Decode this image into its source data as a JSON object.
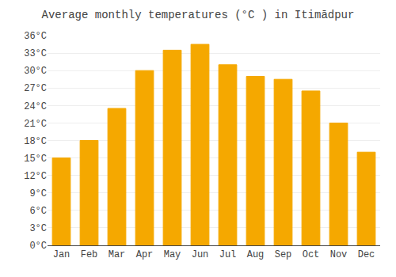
{
  "chart_data": {
    "type": "bar",
    "title": "Average monthly temperatures (°C ) in Itimādpur",
    "categories": [
      "Jan",
      "Feb",
      "Mar",
      "Apr",
      "May",
      "Jun",
      "Jul",
      "Aug",
      "Sep",
      "Oct",
      "Nov",
      "Dec"
    ],
    "values": [
      15,
      18,
      23.5,
      30,
      33.5,
      34.5,
      31,
      29,
      28.5,
      26.5,
      21,
      16
    ],
    "color": "#F5A800",
    "ylim": [
      0,
      36
    ],
    "yticks": [
      {
        "value": 0,
        "label": "0°C"
      },
      {
        "value": 3,
        "label": "3°C"
      },
      {
        "value": 6,
        "label": "6°C"
      },
      {
        "value": 9,
        "label": "9°C"
      },
      {
        "value": 12,
        "label": "12°C"
      },
      {
        "value": 15,
        "label": "15°C"
      },
      {
        "value": 18,
        "label": "18°C"
      },
      {
        "value": 21,
        "label": "21°C"
      },
      {
        "value": 24,
        "label": "24°C"
      },
      {
        "value": 27,
        "label": "27°C"
      },
      {
        "value": 30,
        "label": "30°C"
      },
      {
        "value": 33,
        "label": "33°C"
      },
      {
        "value": 36,
        "label": "36°C"
      }
    ],
    "grid": true
  }
}
